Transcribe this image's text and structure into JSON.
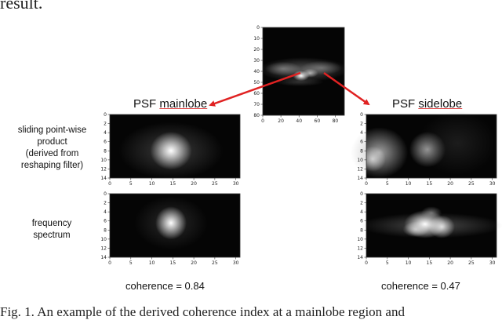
{
  "page": {
    "top_text": "result.",
    "caption": "Fig. 1.  An example of the derived coherence index at a mainlobe region and"
  },
  "figure": {
    "center_image": {
      "x_ticks": [
        "0",
        "20",
        "40",
        "60",
        "80"
      ],
      "y_ticks": [
        "0",
        "10",
        "20",
        "30",
        "40",
        "50",
        "60",
        "70",
        "80"
      ]
    },
    "columns": [
      {
        "heading_prefix": "PSF ",
        "heading_underlined": "mainlobe",
        "coherence_label": "coherence = 0.84"
      },
      {
        "heading_prefix": "PSF ",
        "heading_underlined": "sidelobe",
        "coherence_label": "coherence = 0.47"
      }
    ],
    "row_labels": [
      "sliding point-wise\nproduct\n(derived from\nreshaping filter)",
      "frequency\nspectrum"
    ],
    "panel_axes": {
      "x_ticks": [
        "0",
        "5",
        "10",
        "15",
        "20",
        "25",
        "30"
      ],
      "y_ticks": [
        "0",
        "2",
        "4",
        "6",
        "8",
        "10",
        "12",
        "14"
      ]
    },
    "arrow_color": "#e02222"
  }
}
